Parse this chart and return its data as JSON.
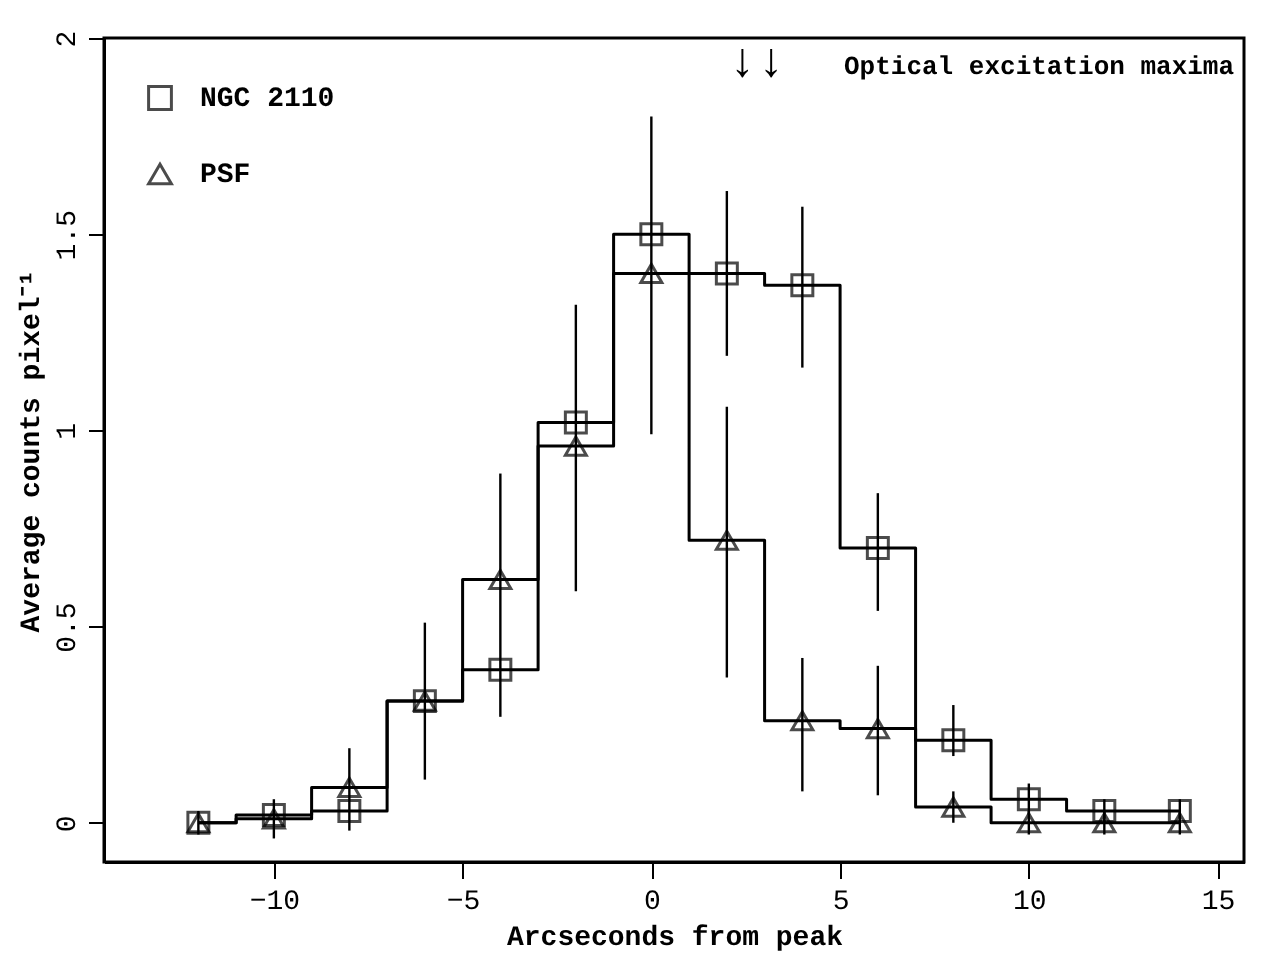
{
  "chart_data": {
    "type": "step",
    "xlabel": "Arcseconds from peak",
    "ylabel": "Average counts pixel⁻¹",
    "x": [
      -12,
      -10,
      -8,
      -6,
      -4,
      -2,
      0,
      2,
      4,
      6,
      8,
      10,
      12,
      14
    ],
    "xlim": [
      -14.5,
      15.7
    ],
    "xticks": [
      -10,
      -5,
      0,
      5,
      10,
      15
    ],
    "ylim": [
      -0.1,
      2
    ],
    "yticks": [
      {
        "value": 0,
        "label": "0"
      },
      0.5,
      {
        "value": 1,
        "label": "1"
      },
      1.5,
      {
        "value": 2,
        "label": "2"
      }
    ],
    "series": [
      {
        "name": "NGC 2110",
        "color": "#000000",
        "marker": "square",
        "values": [
          0,
          0.02,
          0.03,
          0.31,
          0.39,
          1.02,
          1.5,
          1.4,
          1.37,
          0.7,
          0.21,
          0.06,
          0.03,
          0.03
        ],
        "errors": [
          null,
          null,
          null,
          null,
          null,
          null,
          null,
          [
            1.19,
            1.61
          ],
          [
            1.16,
            1.57
          ],
          [
            0.54,
            0.84
          ],
          [
            0.17,
            0.3
          ],
          [
            0.02,
            0.1
          ],
          [
            0.0,
            0.06
          ],
          [
            0.0,
            0.06
          ]
        ]
      },
      {
        "name": "PSF",
        "color": "#000000",
        "marker": "triangle",
        "values": [
          0,
          0.01,
          0.09,
          0.31,
          0.62,
          0.96,
          1.4,
          0.72,
          0.26,
          0.24,
          0.04,
          0,
          0,
          0
        ],
        "errors": [
          [
            -0.03,
            0.03
          ],
          [
            -0.04,
            0.06
          ],
          [
            -0.02,
            0.19
          ],
          [
            0.11,
            0.51
          ],
          [
            0.27,
            0.89
          ],
          [
            0.59,
            1.32
          ],
          [
            0.99,
            1.8
          ],
          [
            0.37,
            1.06
          ],
          [
            0.08,
            0.42
          ],
          [
            0.07,
            0.4
          ],
          [
            0.0,
            0.08
          ],
          [
            -0.03,
            0.03
          ],
          [
            -0.03,
            0.03
          ],
          [
            -0.03,
            0.03
          ]
        ]
      }
    ],
    "legend": "top left",
    "annotations": [
      "↓↓",
      "Optical excitation maxima"
    ]
  }
}
